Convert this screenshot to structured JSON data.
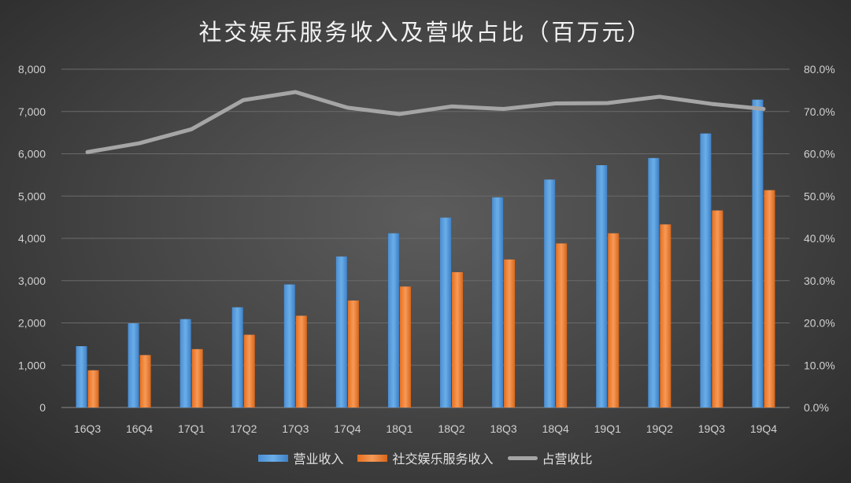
{
  "chart_data": {
    "type": "bar",
    "title": "社交娱乐服务收入及营收占比（百万元）",
    "categories": [
      "16Q3",
      "16Q4",
      "17Q1",
      "17Q2",
      "17Q3",
      "17Q4",
      "18Q1",
      "18Q2",
      "18Q3",
      "18Q4",
      "19Q1",
      "19Q2",
      "19Q3",
      "19Q4"
    ],
    "series": [
      {
        "name": "营业收入",
        "type": "bar",
        "axis": "left",
        "color": "#5b9bd5",
        "values": [
          1450,
          1990,
          2090,
          2370,
          2910,
          3570,
          4120,
          4490,
          4970,
          5390,
          5730,
          5900,
          6480,
          7280
        ]
      },
      {
        "name": "社交娱乐服务收入",
        "type": "bar",
        "axis": "left",
        "color": "#ed7d31",
        "values": [
          880,
          1240,
          1380,
          1720,
          2170,
          2530,
          2860,
          3200,
          3500,
          3880,
          4120,
          4330,
          4660,
          5140
        ]
      },
      {
        "name": "占营收比",
        "type": "line",
        "axis": "right",
        "color": "#a5a5a5",
        "values": [
          60.4,
          62.5,
          65.8,
          72.7,
          74.6,
          70.9,
          69.4,
          71.2,
          70.6,
          71.9,
          72.0,
          73.5,
          71.8,
          70.6
        ]
      }
    ],
    "y_left": {
      "min": 0,
      "max": 8000,
      "ticks": [
        "0",
        "1,000",
        "2,000",
        "3,000",
        "4,000",
        "5,000",
        "6,000",
        "7,000",
        "8,000"
      ]
    },
    "y_right": {
      "min": 0,
      "max": 80,
      "ticks": [
        "0.0%",
        "10.0%",
        "20.0%",
        "30.0%",
        "40.0%",
        "50.0%",
        "60.0%",
        "70.0%",
        "80.0%"
      ]
    },
    "grid": true,
    "legend": "bottom"
  }
}
